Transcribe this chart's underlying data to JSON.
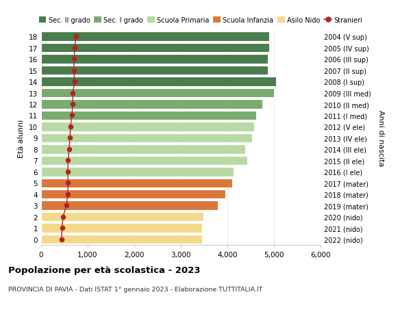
{
  "ages": [
    18,
    17,
    16,
    15,
    14,
    13,
    12,
    11,
    10,
    9,
    8,
    7,
    6,
    5,
    4,
    3,
    2,
    1,
    0
  ],
  "right_labels": [
    "2004 (V sup)",
    "2005 (IV sup)",
    "2006 (III sup)",
    "2007 (II sup)",
    "2008 (I sup)",
    "2009 (III med)",
    "2010 (II med)",
    "2011 (I med)",
    "2012 (V ele)",
    "2013 (IV ele)",
    "2014 (III ele)",
    "2015 (II ele)",
    "2016 (I ele)",
    "2017 (mater)",
    "2018 (mater)",
    "2019 (mater)",
    "2020 (nido)",
    "2021 (nido)",
    "2022 (nido)"
  ],
  "bar_values": [
    4900,
    4900,
    4870,
    4870,
    5050,
    5000,
    4750,
    4620,
    4580,
    4530,
    4380,
    4430,
    4130,
    4100,
    3950,
    3800,
    3480,
    3460,
    3460
  ],
  "stranieri_values": [
    750,
    720,
    710,
    700,
    720,
    680,
    680,
    660,
    630,
    620,
    600,
    580,
    570,
    580,
    570,
    545,
    470,
    450,
    440
  ],
  "bar_colors": [
    "#4a7c4e",
    "#4a7c4e",
    "#4a7c4e",
    "#4a7c4e",
    "#4a7c4e",
    "#7aab6e",
    "#7aab6e",
    "#7aab6e",
    "#b8d9a3",
    "#b8d9a3",
    "#b8d9a3",
    "#b8d9a3",
    "#b8d9a3",
    "#d9783a",
    "#d9783a",
    "#d9783a",
    "#f5d98a",
    "#f5d98a",
    "#f5d98a"
  ],
  "legend_labels": [
    "Sec. II grado",
    "Sec. I grado",
    "Scuola Primaria",
    "Scuola Infanzia",
    "Asilo Nido",
    "Stranieri"
  ],
  "legend_colors": [
    "#4a7c4e",
    "#7aab6e",
    "#b8d9a3",
    "#d9783a",
    "#f5d98a",
    "#b22222"
  ],
  "title": "Popolazione per età scolastica - 2023",
  "subtitle": "PROVINCIA DI PAVIA - Dati ISTAT 1° gennaio 2023 - Elaborazione TUTTITALIA.IT",
  "ylabel_left": "Età alunni",
  "ylabel_right": "Anni di nascita",
  "xlim": [
    0,
    6000
  ],
  "xticks": [
    0,
    1000,
    2000,
    3000,
    4000,
    5000,
    6000
  ],
  "xtick_labels": [
    "0",
    "1,000",
    "2,000",
    "3,000",
    "4,000",
    "5,000",
    "6,000"
  ],
  "stranieri_color": "#b22222",
  "background_color": "#ffffff",
  "bar_edge_color": "#ffffff",
  "grid_color": "#dddddd"
}
